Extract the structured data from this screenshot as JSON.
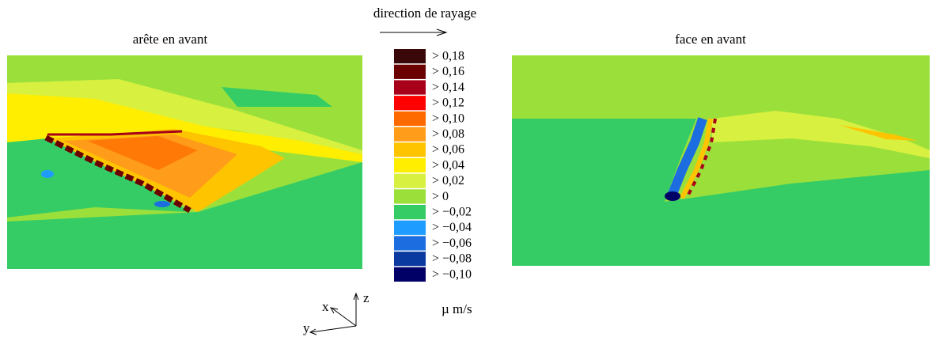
{
  "direction_label": "direction de rayage",
  "panels": [
    {
      "title": "arête en avant"
    },
    {
      "title": "face en avant"
    }
  ],
  "legend": {
    "items": [
      {
        "label": "> 0,18",
        "color": "#3a0808"
      },
      {
        "label": "> 0,16",
        "color": "#6b0000"
      },
      {
        "label": "> 0,14",
        "color": "#a8001a"
      },
      {
        "label": "> 0,12",
        "color": "#ff0000"
      },
      {
        "label": "> 0,10",
        "color": "#ff6a00"
      },
      {
        "label": "> 0,08",
        "color": "#ff9d1a"
      },
      {
        "label": "> 0,06",
        "color": "#ffc400"
      },
      {
        "label": "> 0,04",
        "color": "#ffee00"
      },
      {
        "label": "> 0,02",
        "color": "#d8f040"
      },
      {
        "label": "> 0",
        "color": "#9be03a"
      },
      {
        "label": "> −0,02",
        "color": "#35cc66"
      },
      {
        "label": "> −0,04",
        "color": "#1e9cff"
      },
      {
        "label": "> −0,06",
        "color": "#1c6ee0"
      },
      {
        "label": "> −0,08",
        "color": "#0a3aa0"
      },
      {
        "label": "> −0,10",
        "color": "#000066"
      }
    ],
    "unit": "µ m/s"
  },
  "axes": {
    "x": "x",
    "y": "y",
    "z": "z"
  }
}
